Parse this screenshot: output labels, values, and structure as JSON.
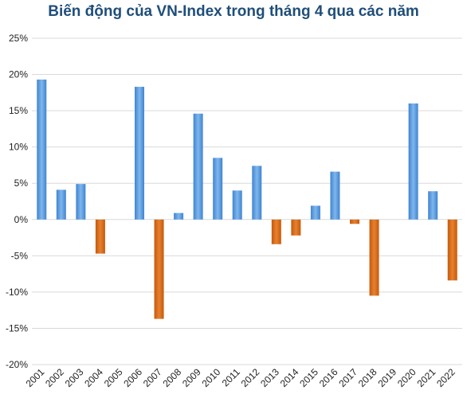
{
  "chart_data": {
    "type": "bar",
    "title": "Biến động của VN-Index trong tháng 4 qua các năm",
    "categories": [
      "2001",
      "2002",
      "2003",
      "2004",
      "2005",
      "2006",
      "2007",
      "2008",
      "2009",
      "2010",
      "2011",
      "2012",
      "2013",
      "2014",
      "2015",
      "2016",
      "2017",
      "2018",
      "2019",
      "2020",
      "2021",
      "2022"
    ],
    "values": [
      19.3,
      4.1,
      4.9,
      -4.7,
      0,
      18.3,
      -13.7,
      0.9,
      14.6,
      8.5,
      4.0,
      7.4,
      -3.4,
      -2.2,
      1.9,
      6.6,
      -0.6,
      -10.5,
      0,
      16.0,
      3.9,
      -8.4
    ],
    "ylim": [
      -20,
      25
    ],
    "yticks": [
      25,
      20,
      15,
      10,
      5,
      0,
      -5,
      -10,
      -15,
      -20
    ],
    "ytick_labels": [
      "25%",
      "20%",
      "15%",
      "10%",
      "5%",
      "0%",
      "-5%",
      "-10%",
      "-15%",
      "-20%"
    ],
    "xlabel": "",
    "ylabel": "",
    "grid": true,
    "colors": {
      "positive": "#4a90d9",
      "negative": "#d0620f",
      "grid": "#d9d9d9"
    }
  }
}
